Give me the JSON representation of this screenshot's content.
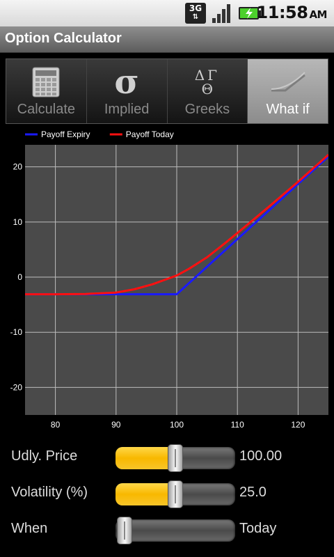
{
  "status_bar": {
    "network": "3G",
    "time": "11:58",
    "ampm": "AM"
  },
  "app": {
    "title": "Option Calculator"
  },
  "tabs": [
    {
      "label": "Calculate",
      "icon": "calculator-icon",
      "active": false
    },
    {
      "label": "Implied",
      "icon": "sigma-icon",
      "active": false
    },
    {
      "label": "Greeks",
      "icon": "greeks-icon",
      "active": false
    },
    {
      "label": "What if",
      "icon": "payoff-chart-icon",
      "active": true
    }
  ],
  "greeks_icon_symbols": {
    "delta": "Δ",
    "gamma": "Γ",
    "theta": "Θ"
  },
  "sigma_symbol": "σ",
  "chart_data": {
    "type": "line",
    "legend": [
      "Payoff Expiry",
      "Payoff Today"
    ],
    "legend_placement": "top-left",
    "grid": true,
    "xlim": [
      75,
      125
    ],
    "ylim": [
      -25,
      24
    ],
    "xticks": [
      80,
      90,
      100,
      110,
      120
    ],
    "yticks": [
      20,
      10,
      0,
      -10,
      -20
    ],
    "colors": {
      "Payoff Expiry": "#1a1aff",
      "Payoff Today": "#ff1010",
      "background": "#4a4a4a",
      "grid": "#bdbdbd"
    },
    "series": [
      {
        "name": "Payoff Expiry",
        "x": [
          75,
          80,
          90,
          100,
          105,
          110,
          115,
          120,
          125
        ],
        "y": [
          -3.1,
          -3.1,
          -3.1,
          -3.1,
          1.9,
          6.9,
          11.9,
          16.9,
          21.9
        ]
      },
      {
        "name": "Payoff Today",
        "x": [
          75,
          80,
          85,
          90,
          93,
          96,
          98,
          100,
          102,
          105,
          108,
          110,
          115,
          120,
          125
        ],
        "y": [
          -3.1,
          -3.1,
          -3.05,
          -2.8,
          -2.2,
          -1.3,
          -0.5,
          0.3,
          1.5,
          3.6,
          6.2,
          8.0,
          12.6,
          17.3,
          22.2
        ]
      }
    ]
  },
  "controls": [
    {
      "label": "Udly. Price",
      "value": "100.00",
      "position": 0.5
    },
    {
      "label": "Volatility (%)",
      "value": "25.0",
      "position": 0.5
    },
    {
      "label": "When",
      "value": "Today",
      "position": 0.0
    }
  ]
}
